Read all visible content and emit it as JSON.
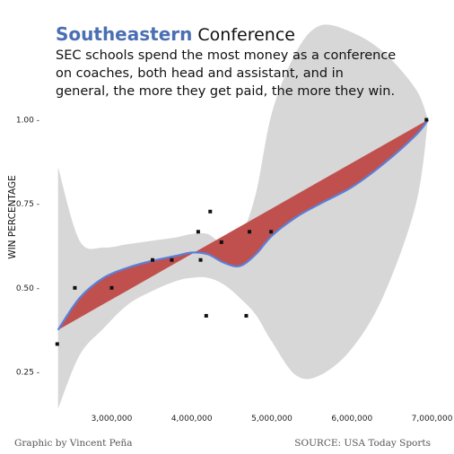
{
  "header": {
    "title_strong": "Southeastern",
    "title_rest": " Conference",
    "subtitle": "SEC schools spend the most money as a conference on coaches, both head and assistant, and in general, the more they get paid, the more they win."
  },
  "footer": {
    "credit": "Graphic by Vincent Peña",
    "source": "SOURCE: USA Today Sports"
  },
  "colors": {
    "band": "#d7d7d7",
    "wedge": "#c0504d",
    "smooth": "#5b7fd9",
    "points": "#111111",
    "title_accent": "#4a6fb3"
  },
  "chart_data": {
    "type": "scatter",
    "xlabel": "",
    "ylabel": "WIN PERCENTAGE",
    "xlim": [
      2300000,
      7050000
    ],
    "ylim": [
      0.15,
      1.02
    ],
    "grid": false,
    "x_ticks": [
      3000000,
      4000000,
      5000000,
      6000000,
      7000000
    ],
    "x_tick_labels": [
      "3,000,000",
      "4,000,000",
      "5,000,000",
      "6,000,000",
      "7,000,000"
    ],
    "y_ticks": [
      0.25,
      0.5,
      0.75,
      1.0
    ],
    "y_tick_labels": [
      "0.25 -",
      "0.50 -",
      "0.75 -",
      "1.00 -"
    ],
    "points": [
      {
        "x": 2320000,
        "y": 0.333
      },
      {
        "x": 2540000,
        "y": 0.5
      },
      {
        "x": 3000000,
        "y": 0.5
      },
      {
        "x": 3510000,
        "y": 0.583
      },
      {
        "x": 3750000,
        "y": 0.583
      },
      {
        "x": 4080000,
        "y": 0.667
      },
      {
        "x": 4110000,
        "y": 0.583
      },
      {
        "x": 4180000,
        "y": 0.417
      },
      {
        "x": 4230000,
        "y": 0.727
      },
      {
        "x": 4370000,
        "y": 0.636
      },
      {
        "x": 4680000,
        "y": 0.417
      },
      {
        "x": 4720000,
        "y": 0.667
      },
      {
        "x": 4990000,
        "y": 0.667
      },
      {
        "x": 6930000,
        "y": 1.0
      }
    ],
    "linear_fit": {
      "x": [
        2330000,
        6950000
      ],
      "y": [
        0.375,
        1.0
      ]
    },
    "smooth_fit": {
      "x": [
        2330000,
        2600000,
        2900000,
        3200000,
        3500000,
        3800000,
        4000000,
        4200000,
        4400000,
        4600000,
        4800000,
        5000000,
        5300000,
        5600000,
        6000000,
        6400000,
        6800000,
        6950000
      ],
      "y": [
        0.375,
        0.47,
        0.53,
        0.56,
        0.58,
        0.595,
        0.605,
        0.6,
        0.575,
        0.565,
        0.6,
        0.655,
        0.71,
        0.75,
        0.8,
        0.87,
        0.955,
        1.0
      ]
    },
    "confidence_band": {
      "x": [
        2330000,
        2600000,
        2900000,
        3200000,
        3500000,
        3800000,
        4000000,
        4200000,
        4400000,
        4600000,
        4800000,
        5000000,
        5300000,
        5600000,
        6000000,
        6400000,
        6800000,
        6950000
      ],
      "upper": [
        0.86,
        0.64,
        0.62,
        0.63,
        0.64,
        0.65,
        0.66,
        0.66,
        0.63,
        0.65,
        0.78,
        1.02,
        1.2,
        1.28,
        1.26,
        1.2,
        1.09,
        1.0
      ],
      "lower": [
        0.14,
        0.3,
        0.38,
        0.45,
        0.49,
        0.52,
        0.53,
        0.53,
        0.51,
        0.47,
        0.42,
        0.34,
        0.24,
        0.24,
        0.32,
        0.48,
        0.75,
        1.0
      ]
    }
  }
}
